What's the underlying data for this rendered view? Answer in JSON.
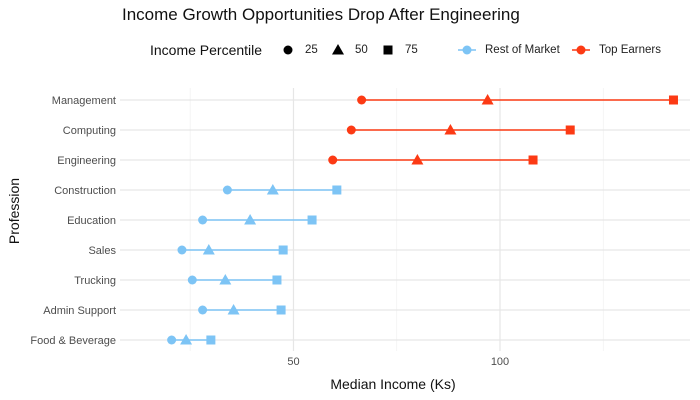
{
  "chart_data": {
    "type": "dumbbell",
    "title": "Income Growth Opportunities Drop After Engineering",
    "xlabel": "Median Income (Ks)",
    "ylabel": "Profession",
    "xlim": [
      8,
      146
    ],
    "x_ticks": [
      50,
      100
    ],
    "x_tick_labels": [
      "50",
      "100"
    ],
    "grid": true,
    "legend_placement": "top",
    "legend": {
      "shape_title": "Income Percentile",
      "shape_entries": [
        {
          "label": "25",
          "shape": "circle"
        },
        {
          "label": "50",
          "shape": "triangle"
        },
        {
          "label": "75",
          "shape": "square"
        }
      ],
      "color_entries": [
        {
          "label": "Rest of Market",
          "color": "#7dc4f5"
        },
        {
          "label": "Top Earners",
          "color": "#fc3a14"
        }
      ]
    },
    "categories": [
      "Management",
      "Computing",
      "Engineering",
      "Construction",
      "Education",
      "Sales",
      "Trucking",
      "Admin Support",
      "Food & Beverage"
    ],
    "series": [
      {
        "name": "25",
        "values": [
          66.5,
          64,
          59.5,
          34,
          28,
          23,
          25.5,
          28,
          20.5
        ]
      },
      {
        "name": "50",
        "values": [
          97,
          88,
          80,
          45,
          39.5,
          29.5,
          33.5,
          35.5,
          24
        ]
      },
      {
        "name": "75",
        "values": [
          142,
          117,
          108,
          60.5,
          54.5,
          47.5,
          46,
          47,
          30
        ]
      }
    ],
    "groups": [
      "Top Earners",
      "Top Earners",
      "Top Earners",
      "Rest of Market",
      "Rest of Market",
      "Rest of Market",
      "Rest of Market",
      "Rest of Market",
      "Rest of Market"
    ],
    "colors": {
      "Rest of Market": "#7dc4f5",
      "Top Earners": "#fc3a14"
    }
  }
}
